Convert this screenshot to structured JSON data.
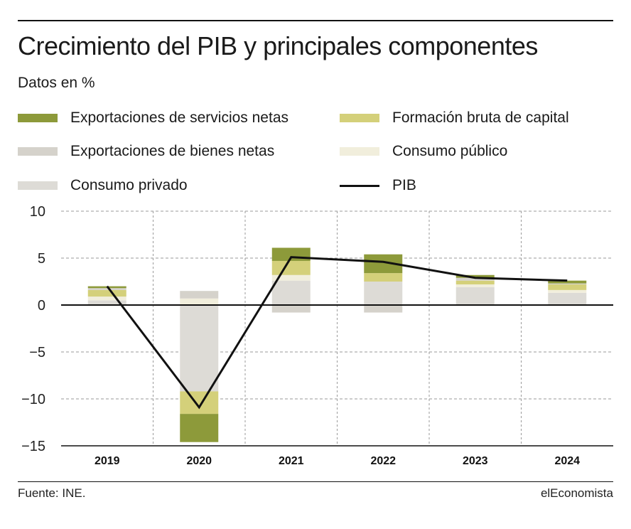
{
  "header": {
    "title": "Crecimiento del PIB y principales componentes",
    "subtitle": "Datos en %"
  },
  "legend": [
    {
      "key": "serv",
      "label": "Exportaciones de servicios netas",
      "color": "#8d9a3a",
      "type": "bar"
    },
    {
      "key": "fbc",
      "label": "Formación bruta de capital",
      "color": "#d4d07a",
      "type": "bar"
    },
    {
      "key": "bienes",
      "label": "Exportaciones de bienes netas",
      "color": "#d5d2cb",
      "type": "bar"
    },
    {
      "key": "publico",
      "label": "Consumo público",
      "color": "#f1eedc",
      "type": "bar"
    },
    {
      "key": "privado",
      "label": "Consumo privado",
      "color": "#dddbd6",
      "type": "bar"
    },
    {
      "key": "pib",
      "label": "PIB",
      "color": "#111111",
      "type": "line"
    }
  ],
  "chart_data": {
    "type": "bar",
    "stacked": true,
    "categories": [
      "2019",
      "2020",
      "2021",
      "2022",
      "2023",
      "2024"
    ],
    "ylim": [
      -15,
      10
    ],
    "yticks": [
      10,
      5,
      0,
      -5,
      -10,
      -15
    ],
    "ytick_labels": [
      "10",
      "5",
      "0",
      "−5",
      "−10",
      "−15"
    ],
    "grid": true,
    "series": [
      {
        "key": "privado",
        "name": "Consumo privado",
        "color": "#dddbd6",
        "values": [
          0.5,
          -9.2,
          2.6,
          2.5,
          1.9,
          1.3
        ]
      },
      {
        "key": "publico",
        "name": "Consumo público",
        "color": "#f1eedc",
        "values": [
          0.4,
          0.7,
          0.6,
          0.0,
          0.3,
          0.3
        ]
      },
      {
        "key": "fbc",
        "name": "Formación bruta de capital",
        "color": "#d4d07a",
        "values": [
          0.7,
          -2.4,
          1.5,
          0.9,
          0.4,
          0.6
        ]
      },
      {
        "key": "bienes",
        "name": "Exportaciones de bienes netas",
        "color": "#d5d2cb",
        "values": [
          0.2,
          0.8,
          -0.8,
          -0.8,
          0.3,
          0.1
        ]
      },
      {
        "key": "serv",
        "name": "Exportaciones de servicios netas",
        "color": "#8d9a3a",
        "values": [
          0.2,
          -3.0,
          1.4,
          2.0,
          0.3,
          0.3
        ]
      }
    ],
    "line": {
      "key": "pib",
      "name": "PIB",
      "color": "#111111",
      "values": [
        2.0,
        -10.9,
        5.1,
        4.6,
        2.9,
        2.6
      ]
    }
  },
  "footer": {
    "source": "Fuente: INE.",
    "brand": "elEconomista"
  }
}
